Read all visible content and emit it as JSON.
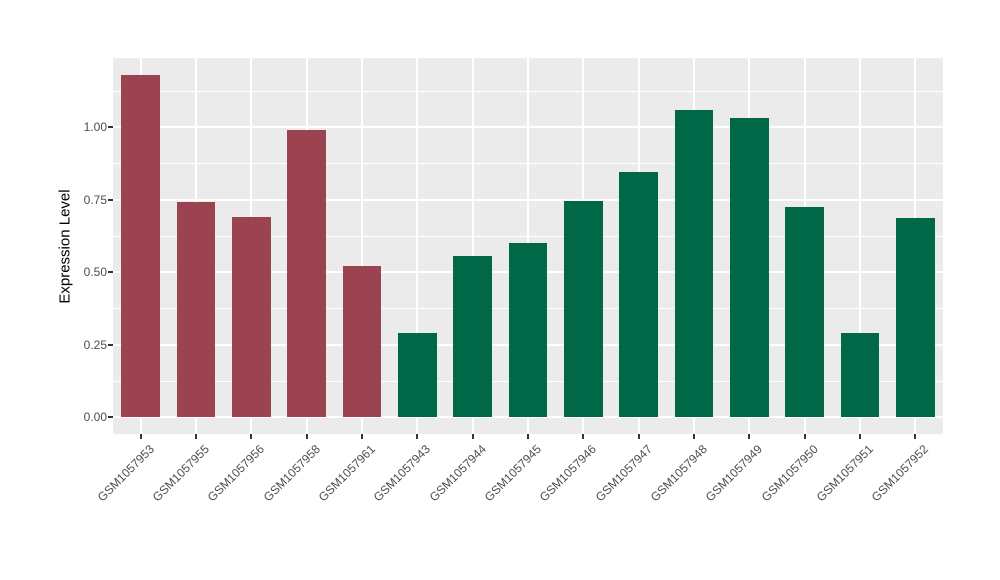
{
  "chart_data": {
    "type": "bar",
    "title": "",
    "xlabel": "",
    "ylabel": "Expression Level",
    "categories": [
      "GSM1057953",
      "GSM1057955",
      "GSM1057956",
      "GSM1057958",
      "GSM1057961",
      "GSM1057943",
      "GSM1057944",
      "GSM1057945",
      "GSM1057946",
      "GSM1057947",
      "GSM1057948",
      "GSM1057949",
      "GSM1057950",
      "GSM1057951",
      "GSM1057952"
    ],
    "values": [
      1.18,
      0.74,
      0.69,
      0.99,
      0.52,
      0.29,
      0.555,
      0.6,
      0.745,
      0.845,
      1.06,
      1.03,
      0.725,
      0.29,
      0.685
    ],
    "bar_groups": [
      "red",
      "red",
      "red",
      "red",
      "red",
      "green",
      "green",
      "green",
      "green",
      "green",
      "green",
      "green",
      "green",
      "green",
      "green"
    ],
    "group_colors": {
      "red": "#9C4351",
      "green": "#006846"
    },
    "yticks": [
      0,
      0.25,
      0.5,
      0.75,
      1.0
    ],
    "ytick_labels": [
      "0.00",
      "0.25",
      "0.50",
      "0.75",
      "1.00"
    ],
    "yticks_minor": [
      0.125,
      0.375,
      0.625,
      0.875,
      1.125
    ],
    "ylim": [
      0,
      1.24
    ],
    "grid": "major-and-minor-horizontal, major-vertical-at-categories",
    "legend_position": "none",
    "panel_background": "#EBEBEB",
    "grid_color": "#FFFFFF",
    "tick_label_color": "#4D4D4D",
    "axis_title_color": "#000000"
  }
}
